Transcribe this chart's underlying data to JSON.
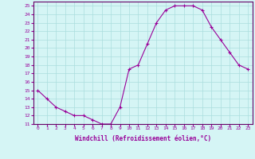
{
  "x": [
    0,
    1,
    2,
    3,
    4,
    5,
    6,
    7,
    8,
    9,
    10,
    11,
    12,
    13,
    14,
    15,
    16,
    17,
    18,
    19,
    20,
    21,
    22,
    23
  ],
  "y": [
    15,
    14,
    13,
    12.5,
    12,
    12,
    11.5,
    11,
    11,
    13,
    17.5,
    18,
    20.5,
    23,
    24.5,
    25,
    25,
    25,
    24.5,
    22.5,
    21,
    19.5,
    18,
    17.5
  ],
  "line_color": "#990099",
  "marker": "+",
  "marker_size": 3,
  "bg_color": "#d5f5f5",
  "grid_color": "#aadddd",
  "xlabel": "Windchill (Refroidissement éolien,°C)",
  "xlabel_color": "#990099",
  "ylabel_ticks": [
    11,
    12,
    13,
    14,
    15,
    16,
    17,
    18,
    19,
    20,
    21,
    22,
    23,
    24,
    25
  ],
  "xlim": [
    -0.5,
    23.5
  ],
  "ylim": [
    11,
    25.5
  ],
  "xticks": [
    0,
    1,
    2,
    3,
    4,
    5,
    6,
    7,
    8,
    9,
    10,
    11,
    12,
    13,
    14,
    15,
    16,
    17,
    18,
    19,
    20,
    21,
    22,
    23
  ],
  "tick_color": "#990099",
  "spine_color": "#660066"
}
